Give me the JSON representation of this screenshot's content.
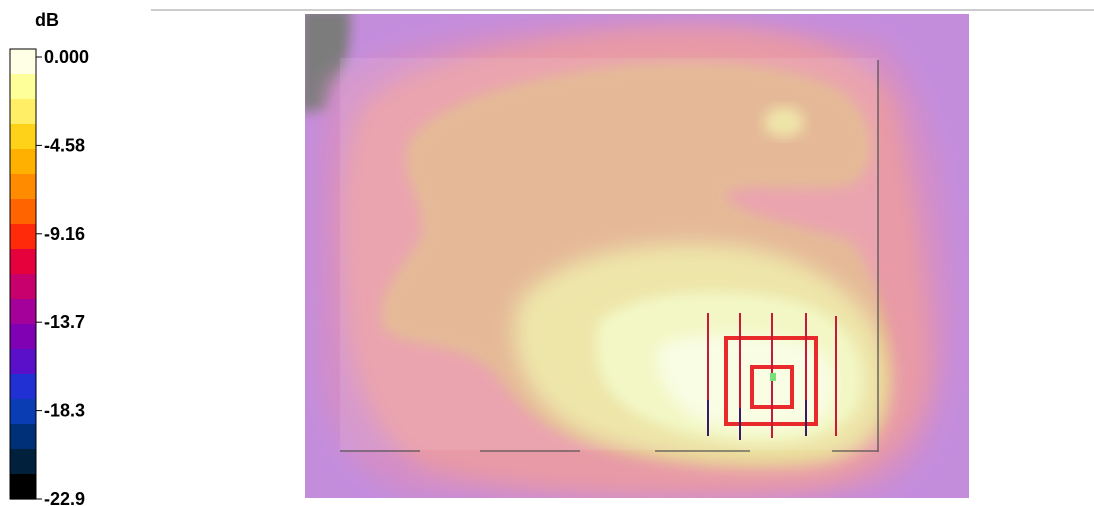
{
  "chart_data": {
    "type": "heatmap",
    "title": "",
    "colorbar": {
      "unit_label": "dB",
      "tick_labels": [
        "0.000",
        "-4.58",
        "-9.16",
        "-13.7",
        "-18.3",
        "-22.9"
      ],
      "range": [
        -22.9,
        0.0
      ],
      "colors_top_to_bottom": [
        "#ffffe6",
        "#ffff99",
        "#ffee66",
        "#ffd21a",
        "#ffb000",
        "#ff8c00",
        "#ff6400",
        "#ff2a0a",
        "#e6003c",
        "#c8006e",
        "#a4009a",
        "#8000b4",
        "#5a10c8",
        "#2030d2",
        "#0a3cb4",
        "#003078",
        "#00203c",
        "#000000"
      ]
    },
    "regions_dB": [
      {
        "region": "outer-edges",
        "value": -15.0
      },
      {
        "region": "upper-left-corner",
        "value": -22.9
      },
      {
        "region": "upper-band",
        "value": -9.5
      },
      {
        "region": "central-plateau",
        "value": -6.5
      },
      {
        "region": "lower-right-lobe",
        "value": -3.0
      },
      {
        "region": "peak",
        "value": 0.0
      }
    ]
  }
}
